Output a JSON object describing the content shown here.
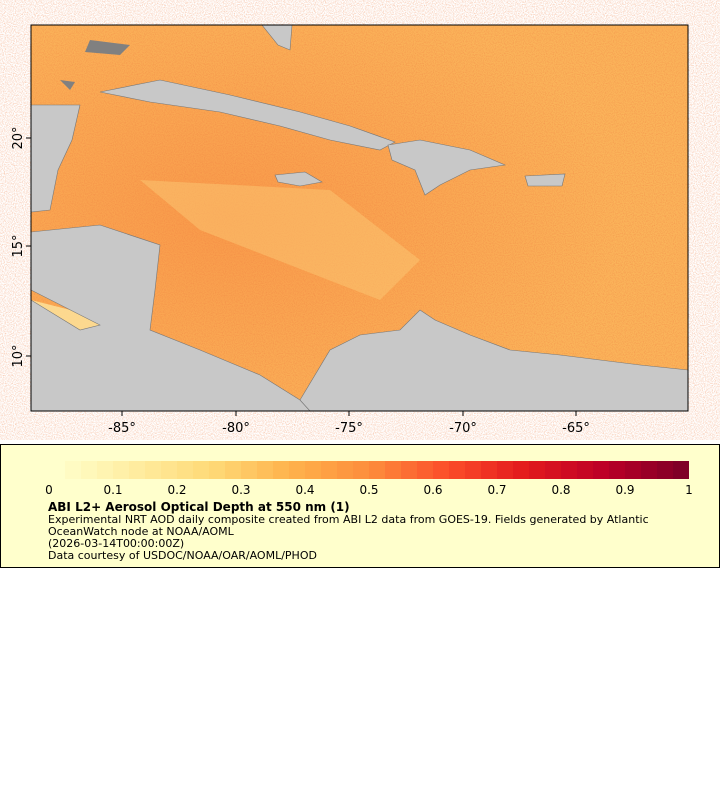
{
  "map": {
    "lon_ticks": [
      "-85°",
      "-80°",
      "-75°",
      "-70°",
      "-65°"
    ],
    "lat_ticks": [
      "20°",
      "15°",
      "10°"
    ],
    "colors": {
      "land": "#c8c8c8",
      "nodata": "#808080",
      "border": "#666666",
      "river": "#6a9fd8"
    }
  },
  "legend": {
    "colorbar_labels": [
      "0",
      "0.1",
      "0.2",
      "0.3",
      "0.4",
      "0.5",
      "0.6",
      "0.7",
      "0.8",
      "0.9",
      "1"
    ],
    "colorbar_range": [
      0,
      1
    ],
    "colormap": [
      "#ffffcc",
      "#ffeda0",
      "#fed976",
      "#feb24c",
      "#fd8d3c",
      "#fc4e2a",
      "#e31a1c",
      "#bd0026",
      "#800026"
    ],
    "title": "ABI L2+ Aerosol Optical Depth at 550 nm (1)",
    "description": "Experimental NRT AOD daily composite created from ABI L2 data from GOES-19. Fields generated by Atlantic OceanWatch node at NOAA/AOML",
    "time": "(2026-03-14T00:00:00Z)",
    "credit": "Data courtesy of USDOC/NOAA/OAR/AOML/PHOD"
  }
}
